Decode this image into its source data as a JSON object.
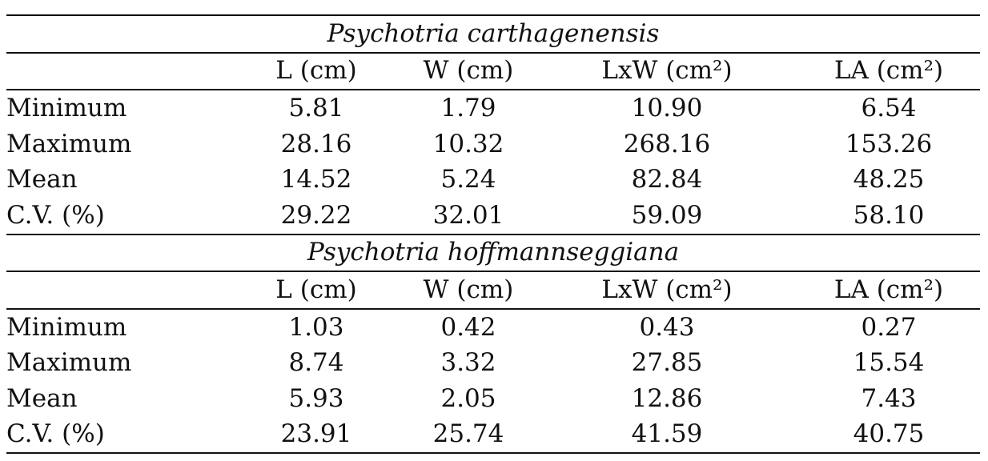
{
  "table": {
    "columns": [
      "",
      "L (cm)",
      "W (cm)",
      "LxW (cm²)",
      "LA (cm²)"
    ],
    "sections": [
      {
        "species": "Psychotria carthagenensis",
        "rows": [
          {
            "label": "Minimum",
            "values": [
              "5.81",
              "1.79",
              "10.90",
              "6.54"
            ]
          },
          {
            "label": "Maximum",
            "values": [
              "28.16",
              "10.32",
              "268.16",
              "153.26"
            ]
          },
          {
            "label": "Mean",
            "values": [
              "14.52",
              "5.24",
              "82.84",
              "48.25"
            ]
          },
          {
            "label": "C.V. (%)",
            "values": [
              "29.22",
              "32.01",
              "59.09",
              "58.10"
            ]
          }
        ]
      },
      {
        "species": "Psychotria hoffmannseggiana",
        "rows": [
          {
            "label": "Minimum",
            "values": [
              "1.03",
              "0.42",
              "0.43",
              "0.27"
            ]
          },
          {
            "label": "Maximum",
            "values": [
              "8.74",
              "3.32",
              "27.85",
              "15.54"
            ]
          },
          {
            "label": "Mean",
            "values": [
              "5.93",
              "2.05",
              "12.86",
              "7.43"
            ]
          },
          {
            "label": "C.V. (%)",
            "values": [
              "23.91",
              "25.74",
              "41.59",
              "40.75"
            ]
          }
        ]
      }
    ]
  }
}
